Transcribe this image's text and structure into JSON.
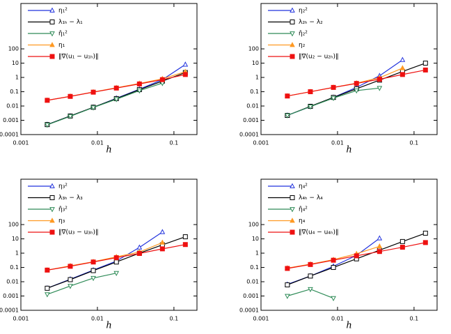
{
  "chart_data": [
    {
      "type": "line",
      "xlabel": "h",
      "xscale": "log",
      "yscale": "log",
      "legend": "upper left",
      "xlim": [
        0.001,
        0.2
      ],
      "ylim": [
        0.0001,
        150000
      ],
      "xticks": [
        0.001,
        0.01,
        0.1
      ],
      "yticks": [
        0.0001,
        0.001,
        0.01,
        0.1,
        1,
        10,
        100
      ],
      "x": [
        0.00221,
        0.00442,
        0.00884,
        0.0177,
        0.0354,
        0.0707,
        0.141
      ],
      "series": [
        {
          "name": "η₁²",
          "color": "#2233dd",
          "marker": "triangle-up",
          "marker_fill": false,
          "values": [
            0.0005,
            0.002,
            0.008,
            0.035,
            0.15,
            0.7,
            8
          ]
        },
        {
          "name": "λ₁ₕ − λ₁",
          "color": "#000000",
          "marker": "square",
          "marker_fill": false,
          "values": [
            0.0005,
            0.002,
            0.0082,
            0.033,
            0.14,
            0.55,
            2.2
          ]
        },
        {
          "name": "η̂₁²",
          "color": "#2e8b57",
          "marker": "triangle-down",
          "marker_fill": false,
          "values": [
            0.00048,
            0.0019,
            0.0078,
            0.03,
            0.12,
            0.4,
            null
          ]
        },
        {
          "name": "η₁",
          "color": "#ff9922",
          "marker": "triangle-up",
          "marker_fill": true,
          "values": [
            0.025,
            0.048,
            0.095,
            0.19,
            0.38,
            0.8,
            2.5
          ]
        },
        {
          "name": "‖∇(u₁ − u₁ₕ)‖",
          "color": "#ee1111",
          "marker": "square",
          "marker_fill": true,
          "values": [
            0.025,
            0.047,
            0.093,
            0.18,
            0.35,
            0.7,
            1.6
          ]
        }
      ]
    },
    {
      "type": "line",
      "xlabel": "h",
      "xscale": "log",
      "yscale": "log",
      "legend": "upper left",
      "xlim": [
        0.001,
        0.2
      ],
      "ylim": [
        0.0001,
        150000
      ],
      "xticks": [
        0.001,
        0.01,
        0.1
      ],
      "yticks": [
        0.0001,
        0.001,
        0.01,
        0.1,
        1,
        10,
        100
      ],
      "x": [
        0.00221,
        0.00442,
        0.00884,
        0.0177,
        0.0354,
        0.0707,
        0.141
      ],
      "series": [
        {
          "name": "η₂²",
          "color": "#2233dd",
          "marker": "triangle-up",
          "marker_fill": false,
          "values": [
            0.0022,
            0.009,
            0.04,
            0.2,
            1.3,
            17,
            null
          ]
        },
        {
          "name": "λ₂ₕ − λ₂",
          "color": "#000000",
          "marker": "square",
          "marker_fill": false,
          "values": [
            0.0022,
            0.0095,
            0.04,
            0.16,
            0.65,
            2.6,
            10
          ]
        },
        {
          "name": "η̂₂²",
          "color": "#2e8b57",
          "marker": "triangle-down",
          "marker_fill": false,
          "values": [
            0.0022,
            0.009,
            0.036,
            0.12,
            0.18,
            null,
            null
          ]
        },
        {
          "name": "η₂",
          "color": "#ff9922",
          "marker": "triangle-up",
          "marker_fill": true,
          "values": [
            0.05,
            0.1,
            0.2,
            0.4,
            0.95,
            4.5,
            null
          ]
        },
        {
          "name": "‖∇(u₂ − u₂ₕ)‖",
          "color": "#ee1111",
          "marker": "square",
          "marker_fill": true,
          "values": [
            0.05,
            0.1,
            0.2,
            0.38,
            0.75,
            1.6,
            3.3
          ]
        }
      ]
    },
    {
      "type": "line",
      "xlabel": "h",
      "xscale": "log",
      "yscale": "log",
      "legend": "upper left",
      "xlim": [
        0.001,
        0.2
      ],
      "ylim": [
        0.0001,
        150000
      ],
      "xticks": [
        0.001,
        0.01,
        0.1
      ],
      "yticks": [
        0.0001,
        0.001,
        0.01,
        0.1,
        1,
        10,
        100
      ],
      "x": [
        0.00221,
        0.00442,
        0.00884,
        0.0177,
        0.0354,
        0.0707,
        0.141
      ],
      "series": [
        {
          "name": "η₃²",
          "color": "#2233dd",
          "marker": "triangle-up",
          "marker_fill": false,
          "values": [
            0.0035,
            0.015,
            0.065,
            0.28,
            2.5,
            30,
            null
          ]
        },
        {
          "name": "λ₃ₕ − λ₃",
          "color": "#000000",
          "marker": "square",
          "marker_fill": false,
          "values": [
            0.0035,
            0.014,
            0.06,
            0.24,
            1,
            3.8,
            14
          ]
        },
        {
          "name": "η̂₃²",
          "color": "#2e8b57",
          "marker": "triangle-down",
          "marker_fill": false,
          "values": [
            0.0013,
            0.005,
            0.018,
            0.04,
            null,
            null,
            null
          ]
        },
        {
          "name": "η₃",
          "color": "#ff9922",
          "marker": "triangle-up",
          "marker_fill": true,
          "values": [
            0.065,
            0.13,
            0.25,
            0.55,
            1.2,
            5.5,
            null
          ]
        },
        {
          "name": "‖∇(u₃ − u₃ₕ)‖",
          "color": "#ee1111",
          "marker": "square",
          "marker_fill": true,
          "values": [
            0.065,
            0.12,
            0.24,
            0.48,
            0.95,
            2,
            4
          ]
        }
      ]
    },
    {
      "type": "line",
      "xlabel": "h",
      "xscale": "log",
      "yscale": "log",
      "legend": "upper left",
      "xlim": [
        0.001,
        0.2
      ],
      "ylim": [
        0.0001,
        150000
      ],
      "xticks": [
        0.001,
        0.01,
        0.1
      ],
      "yticks": [
        0.0001,
        0.001,
        0.01,
        0.1,
        1,
        10,
        100
      ],
      "x": [
        0.00221,
        0.00442,
        0.00884,
        0.0177,
        0.0354,
        0.0707,
        0.141
      ],
      "series": [
        {
          "name": "η₄²",
          "color": "#2233dd",
          "marker": "triangle-up",
          "marker_fill": false,
          "values": [
            0.0065,
            0.025,
            0.12,
            0.7,
            11,
            null,
            null
          ]
        },
        {
          "name": "λ₄ₕ − λ₄",
          "color": "#000000",
          "marker": "square",
          "marker_fill": false,
          "values": [
            0.006,
            0.025,
            0.1,
            0.4,
            1.6,
            6.5,
            25
          ]
        },
        {
          "name": "η̂₄²",
          "color": "#2e8b57",
          "marker": "triangle-down",
          "marker_fill": false,
          "values": [
            0.001,
            0.003,
            0.0007,
            null,
            null,
            null,
            null
          ]
        },
        {
          "name": "η₄",
          "color": "#ff9922",
          "marker": "triangle-up",
          "marker_fill": true,
          "values": [
            0.09,
            0.17,
            0.35,
            0.9,
            3,
            null,
            null
          ]
        },
        {
          "name": "‖∇(u₄ − u₄ₕ)‖",
          "color": "#ee1111",
          "marker": "square",
          "marker_fill": true,
          "values": [
            0.085,
            0.16,
            0.32,
            0.65,
            1.3,
            2.6,
            5.5
          ]
        }
      ]
    }
  ]
}
